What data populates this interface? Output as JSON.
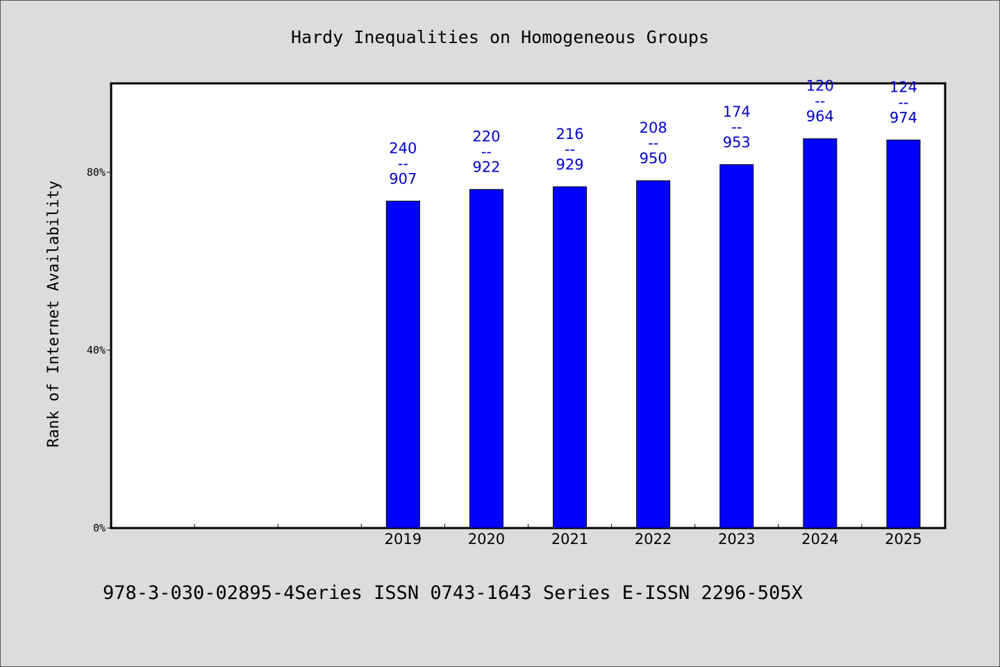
{
  "chart_data": {
    "type": "bar",
    "title": "Hardy Inequalities on Homogeneous Groups",
    "xlabel": "",
    "ylabel": "Rank of Internet Availability",
    "footer": "978-3-030-02895-4Series ISSN 0743-1643 Series E-ISSN 2296-505X",
    "categories": [
      "",
      "",
      "",
      "2019",
      "2020",
      "2021",
      "2022",
      "2023",
      "2024",
      "2025"
    ],
    "values": [
      null,
      null,
      null,
      0.7353,
      0.7614,
      0.7675,
      0.7811,
      0.8174,
      0.8755,
      0.8727
    ],
    "data_labels": [
      [
        "",
        "",
        ""
      ],
      [
        "",
        "",
        ""
      ],
      [
        "",
        "",
        ""
      ],
      [
        "240",
        "--",
        "907"
      ],
      [
        "220",
        "--",
        "922"
      ],
      [
        "216",
        "--",
        "929"
      ],
      [
        "208",
        "--",
        "950"
      ],
      [
        "174",
        "--",
        "953"
      ],
      [
        "120",
        "--",
        "964"
      ],
      [
        "124",
        "--",
        "974"
      ]
    ],
    "yticks": [
      {
        "value": 0,
        "label": "0%"
      },
      {
        "value": 0.4,
        "label": "40%"
      },
      {
        "value": 0.8,
        "label": "80%"
      }
    ],
    "ylim": [
      0,
      1.0
    ],
    "grid": false,
    "legend": "none",
    "colors": {
      "bar": "#0000ff",
      "bar_edge": "#000000",
      "label": "#0000cc",
      "background": "#dcdcdc",
      "plot": "#ffffff"
    }
  }
}
